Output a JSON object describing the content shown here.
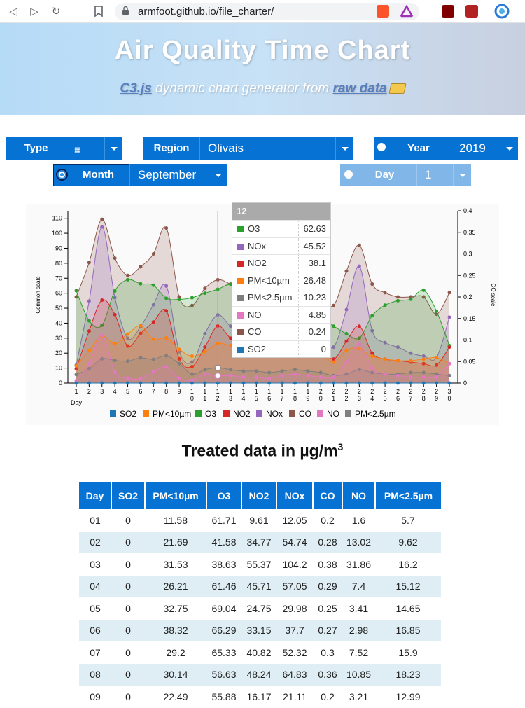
{
  "browser": {
    "url": "armfoot.github.io/file_charter/"
  },
  "header": {
    "title": "Air Quality Time Chart",
    "subtitle_pre": "C3.js",
    "subtitle_mid": " dynamic chart generator from ",
    "subtitle_link": "raw data"
  },
  "controls": {
    "type_label": "Type",
    "region_label": "Region",
    "region_value": "Olivais",
    "year_label": "Year",
    "year_value": "2019",
    "month_label": "Month",
    "month_value": "September",
    "day_label": "Day",
    "day_value": "1"
  },
  "chart_data": {
    "type": "area",
    "ylabel": "Common scale",
    "y2label": "CO scale",
    "xlabel": "Day",
    "ylim": [
      0,
      115
    ],
    "y2lim": [
      0,
      0.4
    ],
    "yticks": [
      0,
      10,
      20,
      30,
      40,
      50,
      60,
      70,
      80,
      90,
      100,
      110
    ],
    "y2ticks": [
      "0",
      "0.05",
      "0.1",
      "0.15",
      "0.2",
      "0.25",
      "0.3",
      "0.35",
      "0.4"
    ],
    "x": [
      1,
      2,
      3,
      4,
      5,
      6,
      7,
      8,
      9,
      10,
      11,
      12,
      13,
      14,
      15,
      16,
      17,
      18,
      19,
      20,
      21,
      22,
      23,
      24,
      25,
      26,
      27,
      28,
      29,
      30
    ],
    "series": [
      {
        "name": "SO2",
        "color": "#1f77b4",
        "values": [
          0,
          0,
          0,
          0,
          0,
          0,
          0,
          0,
          0,
          0,
          0,
          0,
          0,
          0,
          0,
          0,
          0,
          0,
          0,
          0,
          0,
          0,
          0,
          0,
          0,
          0,
          0,
          0,
          0,
          0
        ]
      },
      {
        "name": "PM<10µm",
        "color": "#ff7f0e",
        "values": [
          11.58,
          21.69,
          31.53,
          26.21,
          32.75,
          38.32,
          29.2,
          30.14,
          22.49,
          18,
          21,
          26.48,
          25,
          24,
          23,
          22,
          23,
          22,
          20,
          20,
          14,
          22,
          23,
          18,
          16,
          15,
          15,
          16,
          17,
          13
        ]
      },
      {
        "name": "O3",
        "color": "#2ca02c",
        "values": [
          61.71,
          41.58,
          38.63,
          61.46,
          69.04,
          66.29,
          65.33,
          56.63,
          55.88,
          57,
          60,
          62.63,
          66,
          62,
          60,
          58,
          56,
          52,
          48,
          43,
          38,
          33,
          30,
          45,
          52,
          55,
          56,
          62,
          48,
          25
        ]
      },
      {
        "name": "NO2",
        "color": "#d62728",
        "values": [
          9.61,
          34.77,
          55.37,
          45.71,
          24.75,
          33.15,
          40.82,
          48.24,
          16.17,
          11,
          24,
          38.1,
          30,
          28,
          26,
          24,
          28,
          34,
          30,
          24,
          16,
          28,
          38,
          20,
          16,
          15,
          14,
          13,
          12,
          24
        ]
      },
      {
        "name": "NOx",
        "color": "#9467bd",
        "values": [
          12.05,
          54.74,
          104.2,
          57.05,
          29.98,
          37.7,
          52.32,
          64.83,
          21.11,
          14,
          33,
          45.52,
          38,
          36,
          33,
          30,
          36,
          44,
          40,
          32,
          24,
          49,
          78,
          35,
          27,
          24,
          20,
          18,
          17,
          44
        ]
      },
      {
        "name": "CO",
        "color": "#8c564b",
        "values": [
          0.2,
          0.28,
          0.38,
          0.29,
          0.25,
          0.27,
          0.3,
          0.36,
          0.2,
          0.18,
          0.22,
          0.24,
          0.23,
          0.22,
          0.21,
          0.2,
          0.22,
          0.24,
          0.22,
          0.2,
          0.18,
          0.26,
          0.32,
          0.23,
          0.21,
          0.2,
          0.2,
          0.2,
          0.16,
          0.21
        ]
      },
      {
        "name": "NO",
        "color": "#e377c2",
        "values": [
          1.6,
          13.02,
          31.86,
          7.4,
          3.41,
          2.98,
          7.52,
          10.85,
          3.21,
          2,
          6,
          4.85,
          5,
          4,
          4,
          3,
          5,
          6,
          5,
          4,
          4,
          14,
          26,
          10,
          6,
          5,
          4,
          4,
          4,
          13
        ]
      },
      {
        "name": "PM<2.5µm",
        "color": "#7f7f7f",
        "values": [
          5.7,
          9.62,
          16.2,
          15.12,
          14.65,
          16.85,
          15.9,
          18.23,
          12.99,
          6,
          9,
          10.23,
          9,
          8,
          8,
          7,
          8,
          9,
          8,
          7,
          5,
          6,
          9,
          7,
          6,
          6,
          7,
          7,
          6,
          5
        ]
      }
    ],
    "legend": [
      "SO2",
      "PM<10µm",
      "O3",
      "NO2",
      "NOx",
      "CO",
      "NO",
      "PM<2.5µm"
    ],
    "tooltip": {
      "title": "12",
      "rows": [
        {
          "name": "O3",
          "value": "62.63",
          "color": "#2ca02c"
        },
        {
          "name": "NOx",
          "value": "45.52",
          "color": "#9467bd"
        },
        {
          "name": "NO2",
          "value": "38.1",
          "color": "#d62728"
        },
        {
          "name": "PM<10µm",
          "value": "26.48",
          "color": "#ff7f0e"
        },
        {
          "name": "PM<2.5µm",
          "value": "10.23",
          "color": "#7f7f7f"
        },
        {
          "name": "NO",
          "value": "4.85",
          "color": "#e377c2"
        },
        {
          "name": "CO",
          "value": "0.24",
          "color": "#8c564b"
        },
        {
          "name": "SO2",
          "value": "0",
          "color": "#1f77b4"
        }
      ]
    }
  },
  "table": {
    "title": "Treated data in µg/m",
    "title_sup": "3",
    "headers": [
      "Day",
      "SO2",
      "PM<10µm",
      "O3",
      "NO2",
      "NOx",
      "CO",
      "NO",
      "PM<2.5µm"
    ],
    "rows": [
      [
        "01",
        "0",
        "11.58",
        "61.71",
        "9.61",
        "12.05",
        "0.2",
        "1.6",
        "5.7"
      ],
      [
        "02",
        "0",
        "21.69",
        "41.58",
        "34.77",
        "54.74",
        "0.28",
        "13.02",
        "9.62"
      ],
      [
        "03",
        "0",
        "31.53",
        "38.63",
        "55.37",
        "104.2",
        "0.38",
        "31.86",
        "16.2"
      ],
      [
        "04",
        "0",
        "26.21",
        "61.46",
        "45.71",
        "57.05",
        "0.29",
        "7.4",
        "15.12"
      ],
      [
        "05",
        "0",
        "32.75",
        "69.04",
        "24.75",
        "29.98",
        "0.25",
        "3.41",
        "14.65"
      ],
      [
        "06",
        "0",
        "38.32",
        "66.29",
        "33.15",
        "37.7",
        "0.27",
        "2.98",
        "16.85"
      ],
      [
        "07",
        "0",
        "29.2",
        "65.33",
        "40.82",
        "52.32",
        "0.3",
        "7.52",
        "15.9"
      ],
      [
        "08",
        "0",
        "30.14",
        "56.63",
        "48.24",
        "64.83",
        "0.36",
        "10.85",
        "18.23"
      ],
      [
        "09",
        "0",
        "22.49",
        "55.88",
        "16.17",
        "21.11",
        "0.2",
        "3.21",
        "12.99"
      ]
    ]
  }
}
